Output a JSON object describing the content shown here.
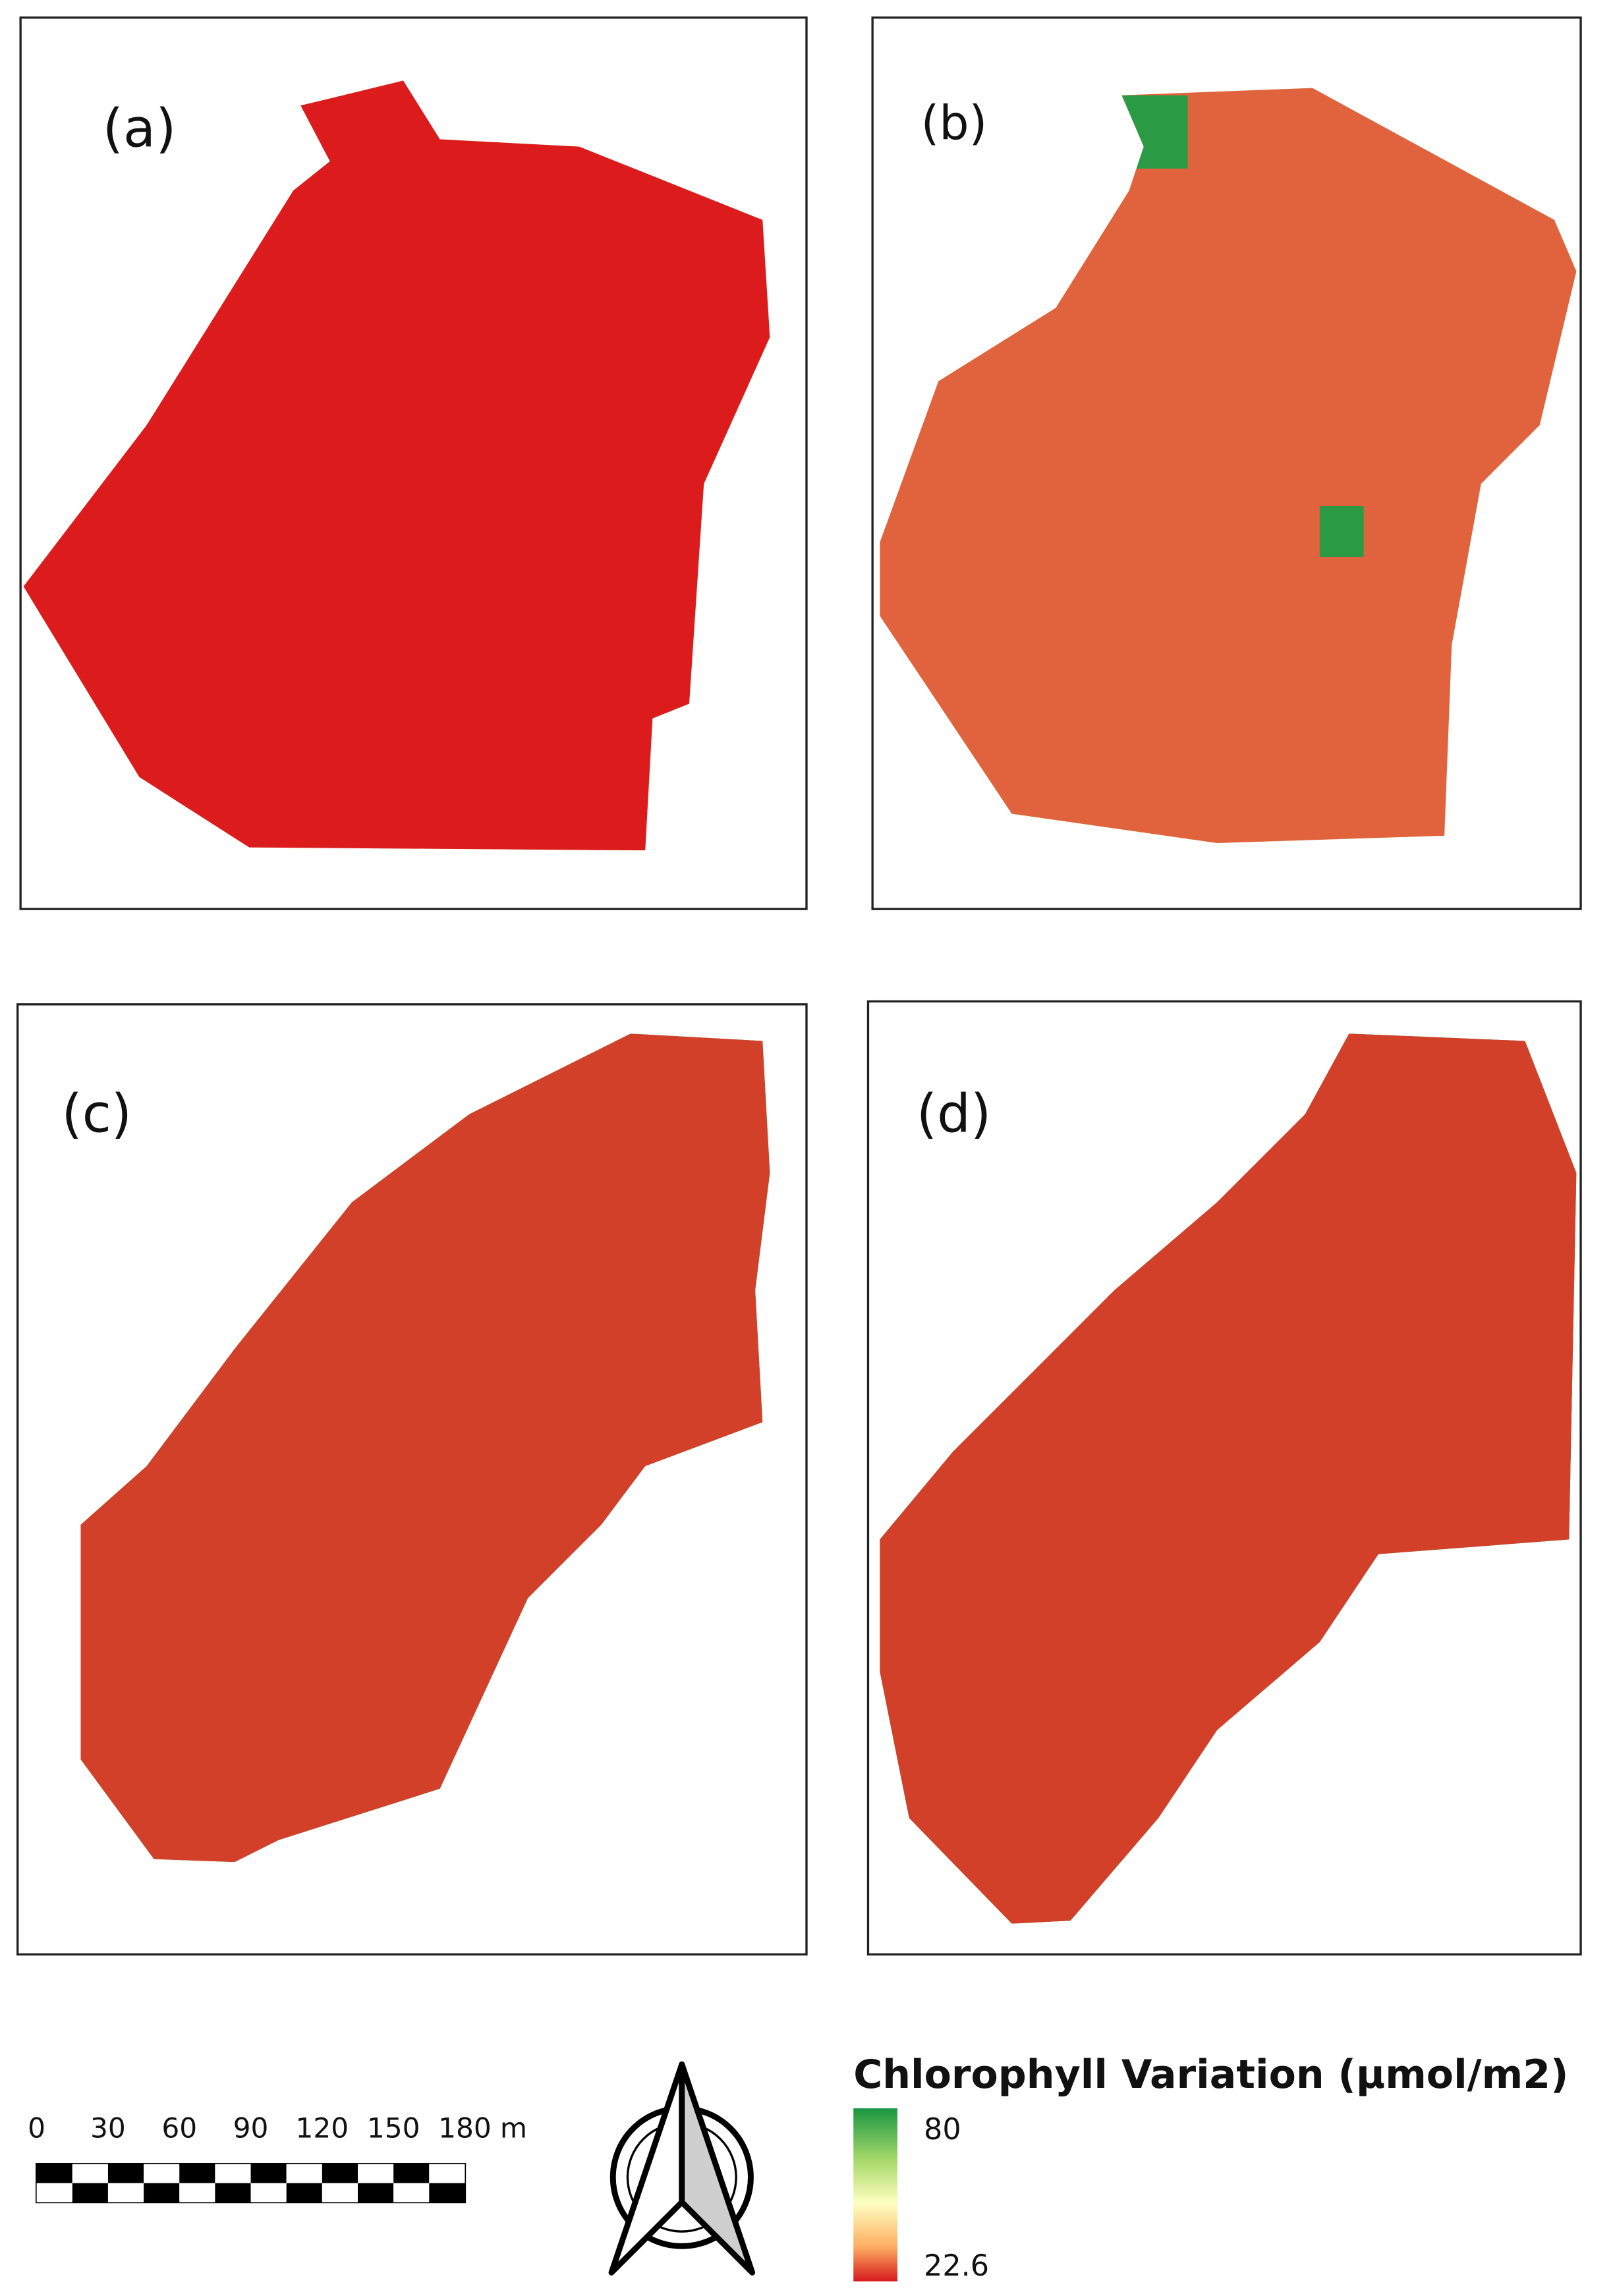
{
  "panels": [
    {
      "label": "(a)"
    },
    {
      "label": "(b)"
    },
    {
      "label": "(c)"
    },
    {
      "label": "(d)"
    }
  ],
  "scale_bar": {
    "ticks": [
      0,
      30,
      60,
      90,
      120,
      150,
      180
    ],
    "unit": "m"
  },
  "legend": {
    "title": "Chlorophyll Variation (µmol/m2)",
    "max": 80,
    "min": 22.6
  }
}
